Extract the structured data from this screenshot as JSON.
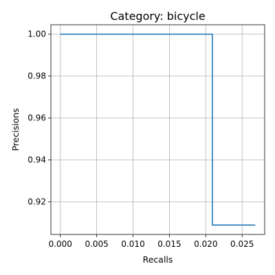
{
  "chart_data": {
    "type": "line",
    "title": "Category: bicycle",
    "xlabel": "Recalls",
    "ylabel": "Precisions",
    "xlim": [
      -0.0013,
      0.0281
    ],
    "ylim": [
      0.9045,
      1.0045
    ],
    "xticks": [
      0.0,
      0.005,
      0.01,
      0.015,
      0.02,
      0.025
    ],
    "xtick_labels": [
      "0.000",
      "0.005",
      "0.010",
      "0.015",
      "0.020",
      "0.025"
    ],
    "yticks": [
      0.92,
      0.94,
      0.96,
      0.98,
      1.0
    ],
    "ytick_labels": [
      "0.92",
      "0.94",
      "0.96",
      "0.98",
      "1.00"
    ],
    "grid": true,
    "series": [
      {
        "color": "#1f77b4",
        "x": [
          0.0,
          0.0209,
          0.0209,
          0.0268
        ],
        "y": [
          1.0,
          1.0,
          0.909,
          0.909
        ]
      }
    ]
  }
}
